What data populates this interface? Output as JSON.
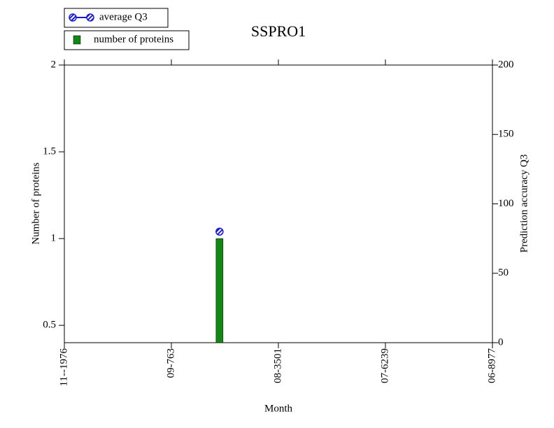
{
  "chart_data": {
    "type": "bar",
    "title": "SSPRO1",
    "xlabel": "Month",
    "ylabel": "Number of proteins",
    "y2label": "Prediction accuracy Q3",
    "x": [
      1.45
    ],
    "xlim": [
      0,
      4
    ],
    "xticks": [
      {
        "value": 0,
        "label": "11--1976"
      },
      {
        "value": 1,
        "label": "09-763"
      },
      {
        "value": 2,
        "label": "08-3501"
      },
      {
        "value": 3,
        "label": "07-6239"
      },
      {
        "value": 4,
        "label": "06-8977"
      }
    ],
    "ylim": [
      0.4,
      2
    ],
    "yticks": [
      0.5,
      1,
      1.5,
      2
    ],
    "y2lim": [
      0,
      200
    ],
    "y2ticks": [
      0,
      50,
      100,
      150,
      200
    ],
    "series": [
      {
        "name": "average Q3",
        "type": "line",
        "axis": "y2",
        "color": "#1a1ad0",
        "values": [
          80
        ]
      },
      {
        "name": "number of proteins",
        "type": "bar",
        "color": "#118811",
        "values": [
          1
        ]
      }
    ],
    "legend": "top-left"
  }
}
